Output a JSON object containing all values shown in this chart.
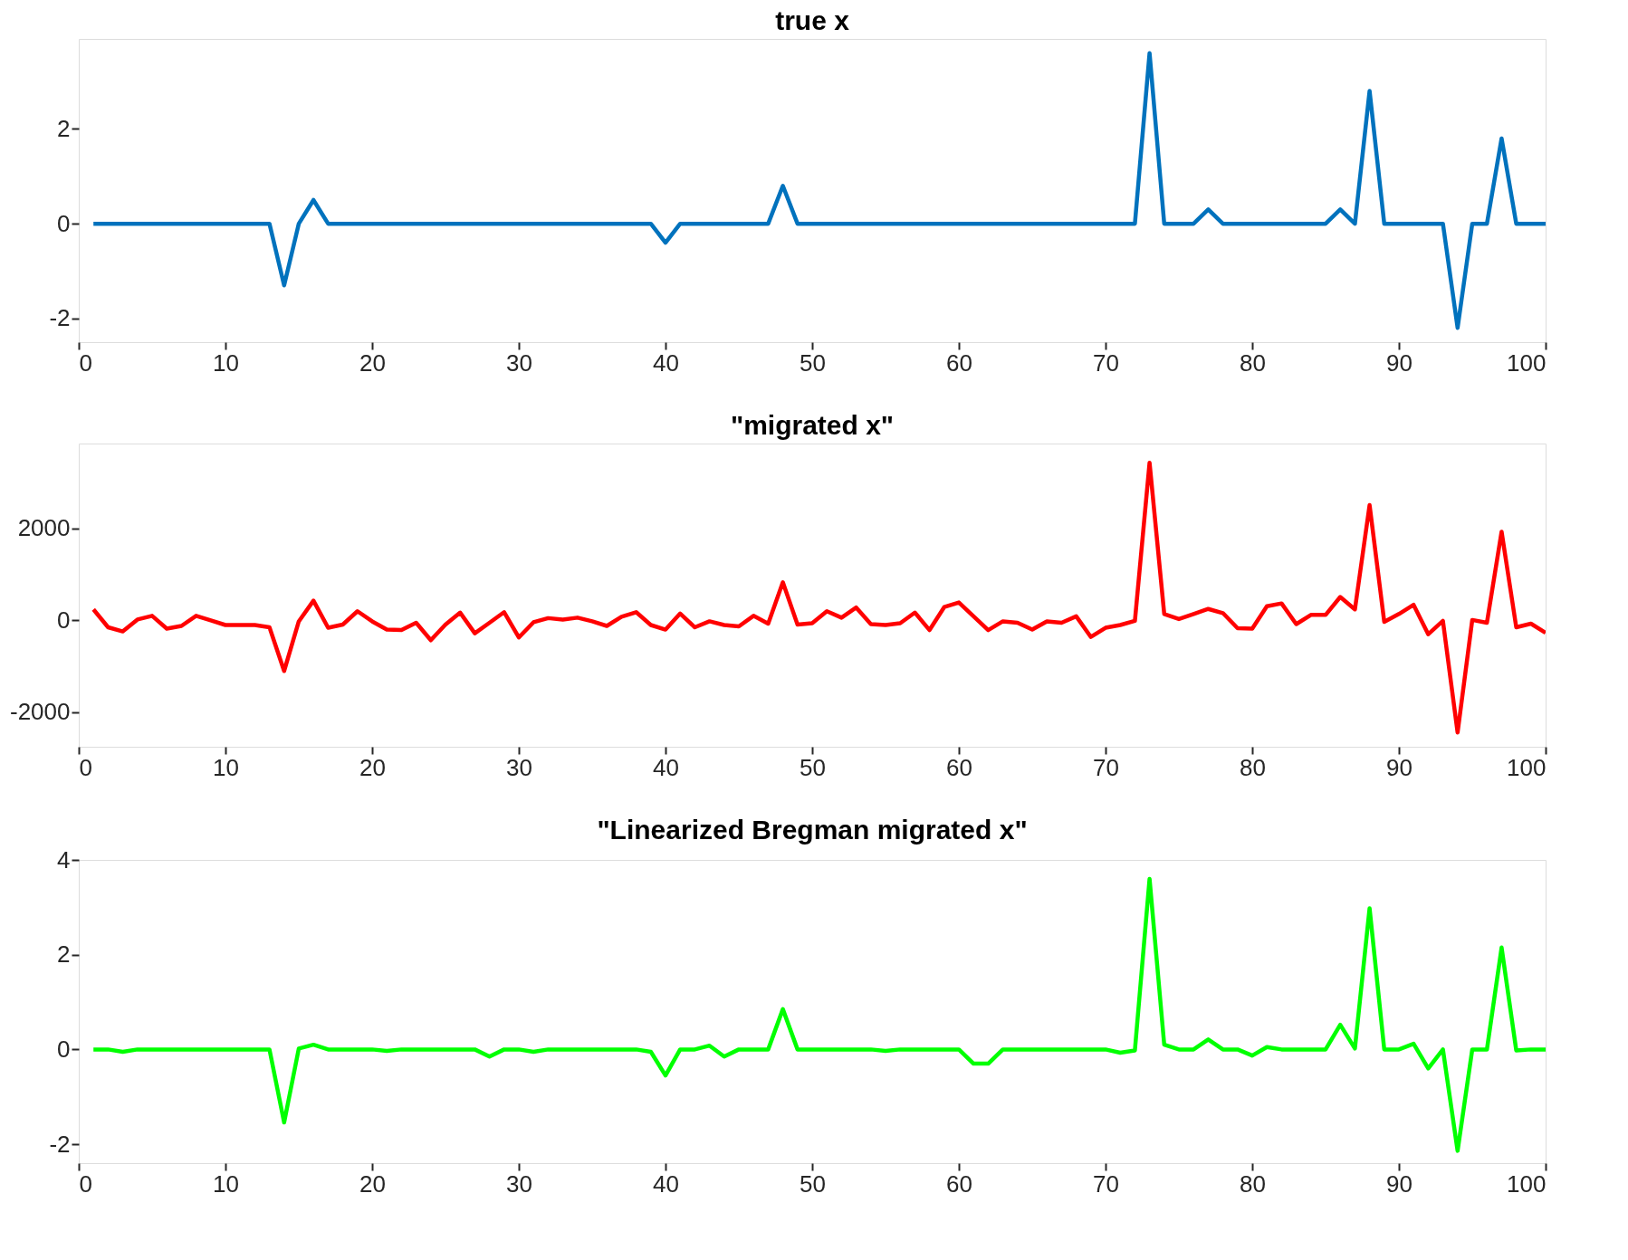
{
  "chart_data": [
    {
      "type": "line",
      "title": "true x",
      "x": [
        1,
        2,
        3,
        4,
        5,
        6,
        7,
        8,
        9,
        10,
        11,
        12,
        13,
        14,
        15,
        16,
        17,
        18,
        19,
        20,
        21,
        22,
        23,
        24,
        25,
        26,
        27,
        28,
        29,
        30,
        31,
        32,
        33,
        34,
        35,
        36,
        37,
        38,
        39,
        40,
        41,
        42,
        43,
        44,
        45,
        46,
        47,
        48,
        49,
        50,
        51,
        52,
        53,
        54,
        55,
        56,
        57,
        58,
        59,
        60,
        61,
        62,
        63,
        64,
        65,
        66,
        67,
        68,
        69,
        70,
        71,
        72,
        73,
        74,
        75,
        76,
        77,
        78,
        79,
        80,
        81,
        82,
        83,
        84,
        85,
        86,
        87,
        88,
        89,
        90,
        91,
        92,
        93,
        94,
        95,
        96,
        97,
        98,
        99,
        100
      ],
      "series": [
        {
          "color": "#0072bd",
          "values": [
            0,
            0,
            0,
            0,
            0,
            0,
            0,
            0,
            0,
            0,
            0,
            0,
            0,
            -1.3,
            0,
            0.5,
            0,
            0,
            0,
            0,
            0,
            0,
            0,
            0,
            0,
            0,
            0,
            0,
            0,
            0,
            0,
            0,
            0,
            0,
            0,
            0,
            0,
            0,
            0,
            -0.4,
            0,
            0,
            0,
            0,
            0,
            0,
            0,
            0.8,
            0,
            0,
            0,
            0,
            0,
            0,
            0,
            0,
            0,
            0,
            0,
            0,
            0,
            0,
            0,
            0,
            0,
            0,
            0,
            0,
            0,
            0,
            0,
            0,
            3.6,
            0,
            0,
            0,
            0.3,
            0,
            0,
            0,
            0,
            0,
            0,
            0,
            0,
            0.3,
            0,
            2.8,
            0,
            0,
            0,
            0,
            0,
            -2.2,
            0,
            0,
            1.8,
            0,
            0,
            0
          ]
        }
      ],
      "xlim": [
        0,
        100
      ],
      "xticks": [
        0,
        10,
        20,
        30,
        40,
        50,
        60,
        70,
        80,
        90,
        100
      ],
      "ylim": [
        -2.5,
        3.9
      ],
      "yticks": [
        -2,
        0,
        2
      ],
      "grid": false,
      "legend": false,
      "line_style": "solid",
      "marker": "none"
    },
    {
      "type": "line",
      "title": "\"migrated x\"",
      "x": [
        1,
        2,
        3,
        4,
        5,
        6,
        7,
        8,
        9,
        10,
        11,
        12,
        13,
        14,
        15,
        16,
        17,
        18,
        19,
        20,
        21,
        22,
        23,
        24,
        25,
        26,
        27,
        28,
        29,
        30,
        31,
        32,
        33,
        34,
        35,
        36,
        37,
        38,
        39,
        40,
        41,
        42,
        43,
        44,
        45,
        46,
        47,
        48,
        49,
        50,
        51,
        52,
        53,
        54,
        55,
        56,
        57,
        58,
        59,
        60,
        61,
        62,
        63,
        64,
        65,
        66,
        67,
        68,
        69,
        70,
        71,
        72,
        73,
        74,
        75,
        76,
        77,
        78,
        79,
        80,
        81,
        82,
        83,
        84,
        85,
        86,
        87,
        88,
        89,
        90,
        91,
        92,
        93,
        94,
        95,
        96,
        97,
        98,
        99,
        100
      ],
      "series": [
        {
          "color": "#ff0000",
          "values": [
            240,
            -150,
            -240,
            20,
            100,
            -180,
            -120,
            100,
            0,
            -100,
            -100,
            -100,
            -150,
            -1100,
            -20,
            430,
            -160,
            -90,
            200,
            -20,
            -200,
            -210,
            -50,
            -430,
            -90,
            170,
            -280,
            -50,
            180,
            -370,
            -40,
            50,
            20,
            60,
            -20,
            -120,
            80,
            180,
            -100,
            -200,
            150,
            -150,
            -20,
            -100,
            -130,
            100,
            -70,
            830,
            -90,
            -60,
            200,
            60,
            280,
            -80,
            -100,
            -60,
            170,
            -210,
            290,
            390,
            90,
            -210,
            -20,
            -50,
            -200,
            -20,
            -50,
            90,
            -360,
            -160,
            -100,
            -10,
            3430,
            140,
            30,
            140,
            250,
            160,
            -170,
            -180,
            310,
            370,
            -80,
            120,
            120,
            510,
            240,
            2510,
            -30,
            140,
            340,
            -300,
            -10,
            -2440,
            10,
            -50,
            1930,
            -150,
            -70,
            -270
          ]
        }
      ],
      "xlim": [
        0,
        100
      ],
      "xticks": [
        0,
        10,
        20,
        30,
        40,
        50,
        60,
        70,
        80,
        90,
        100
      ],
      "ylim": [
        -2750,
        3850
      ],
      "yticks": [
        -2000,
        0,
        2000
      ],
      "grid": false,
      "legend": false,
      "line_style": "solid",
      "marker": "none"
    },
    {
      "type": "line",
      "title": "\"Linearized Bregman migrated x\"",
      "x": [
        1,
        2,
        3,
        4,
        5,
        6,
        7,
        8,
        9,
        10,
        11,
        12,
        13,
        14,
        15,
        16,
        17,
        18,
        19,
        20,
        21,
        22,
        23,
        24,
        25,
        26,
        27,
        28,
        29,
        30,
        31,
        32,
        33,
        34,
        35,
        36,
        37,
        38,
        39,
        40,
        41,
        42,
        43,
        44,
        45,
        46,
        47,
        48,
        49,
        50,
        51,
        52,
        53,
        54,
        55,
        56,
        57,
        58,
        59,
        60,
        61,
        62,
        63,
        64,
        65,
        66,
        67,
        68,
        69,
        70,
        71,
        72,
        73,
        74,
        75,
        76,
        77,
        78,
        79,
        80,
        81,
        82,
        83,
        84,
        85,
        86,
        87,
        88,
        89,
        90,
        91,
        92,
        93,
        94,
        95,
        96,
        97,
        98,
        99,
        100
      ],
      "series": [
        {
          "color": "#00ff00",
          "values": [
            0,
            0,
            -0.05,
            0,
            0,
            0,
            0,
            0,
            0,
            0,
            0,
            0,
            0,
            -1.54,
            0.02,
            0.1,
            0,
            0,
            0,
            0,
            -0.03,
            0,
            0,
            0,
            0,
            0,
            0,
            -0.15,
            0,
            0,
            -0.05,
            0,
            0,
            0,
            0,
            0,
            0,
            0,
            -0.05,
            -0.55,
            0,
            0,
            0.08,
            -0.15,
            0,
            0,
            0,
            0.85,
            0,
            0,
            0,
            0,
            0,
            0,
            -0.03,
            0,
            0,
            0,
            0,
            0,
            -0.3,
            -0.3,
            0,
            0,
            0,
            0,
            0,
            0,
            0,
            0,
            -0.07,
            -0.02,
            3.6,
            0.1,
            0,
            0,
            0.21,
            0,
            0,
            -0.13,
            0.05,
            0,
            0,
            0,
            0,
            0.52,
            0.02,
            2.98,
            0,
            0,
            0.12,
            -0.4,
            0,
            -2.14,
            0,
            0,
            2.15,
            -0.02,
            0,
            0
          ]
        }
      ],
      "xlim": [
        0,
        100
      ],
      "xticks": [
        0,
        10,
        20,
        30,
        40,
        50,
        60,
        70,
        80,
        90,
        100
      ],
      "ylim": [
        -2.4,
        4
      ],
      "yticks": [
        -2,
        0,
        2,
        4
      ],
      "grid": false,
      "legend": false,
      "line_style": "solid",
      "marker": "none"
    }
  ]
}
